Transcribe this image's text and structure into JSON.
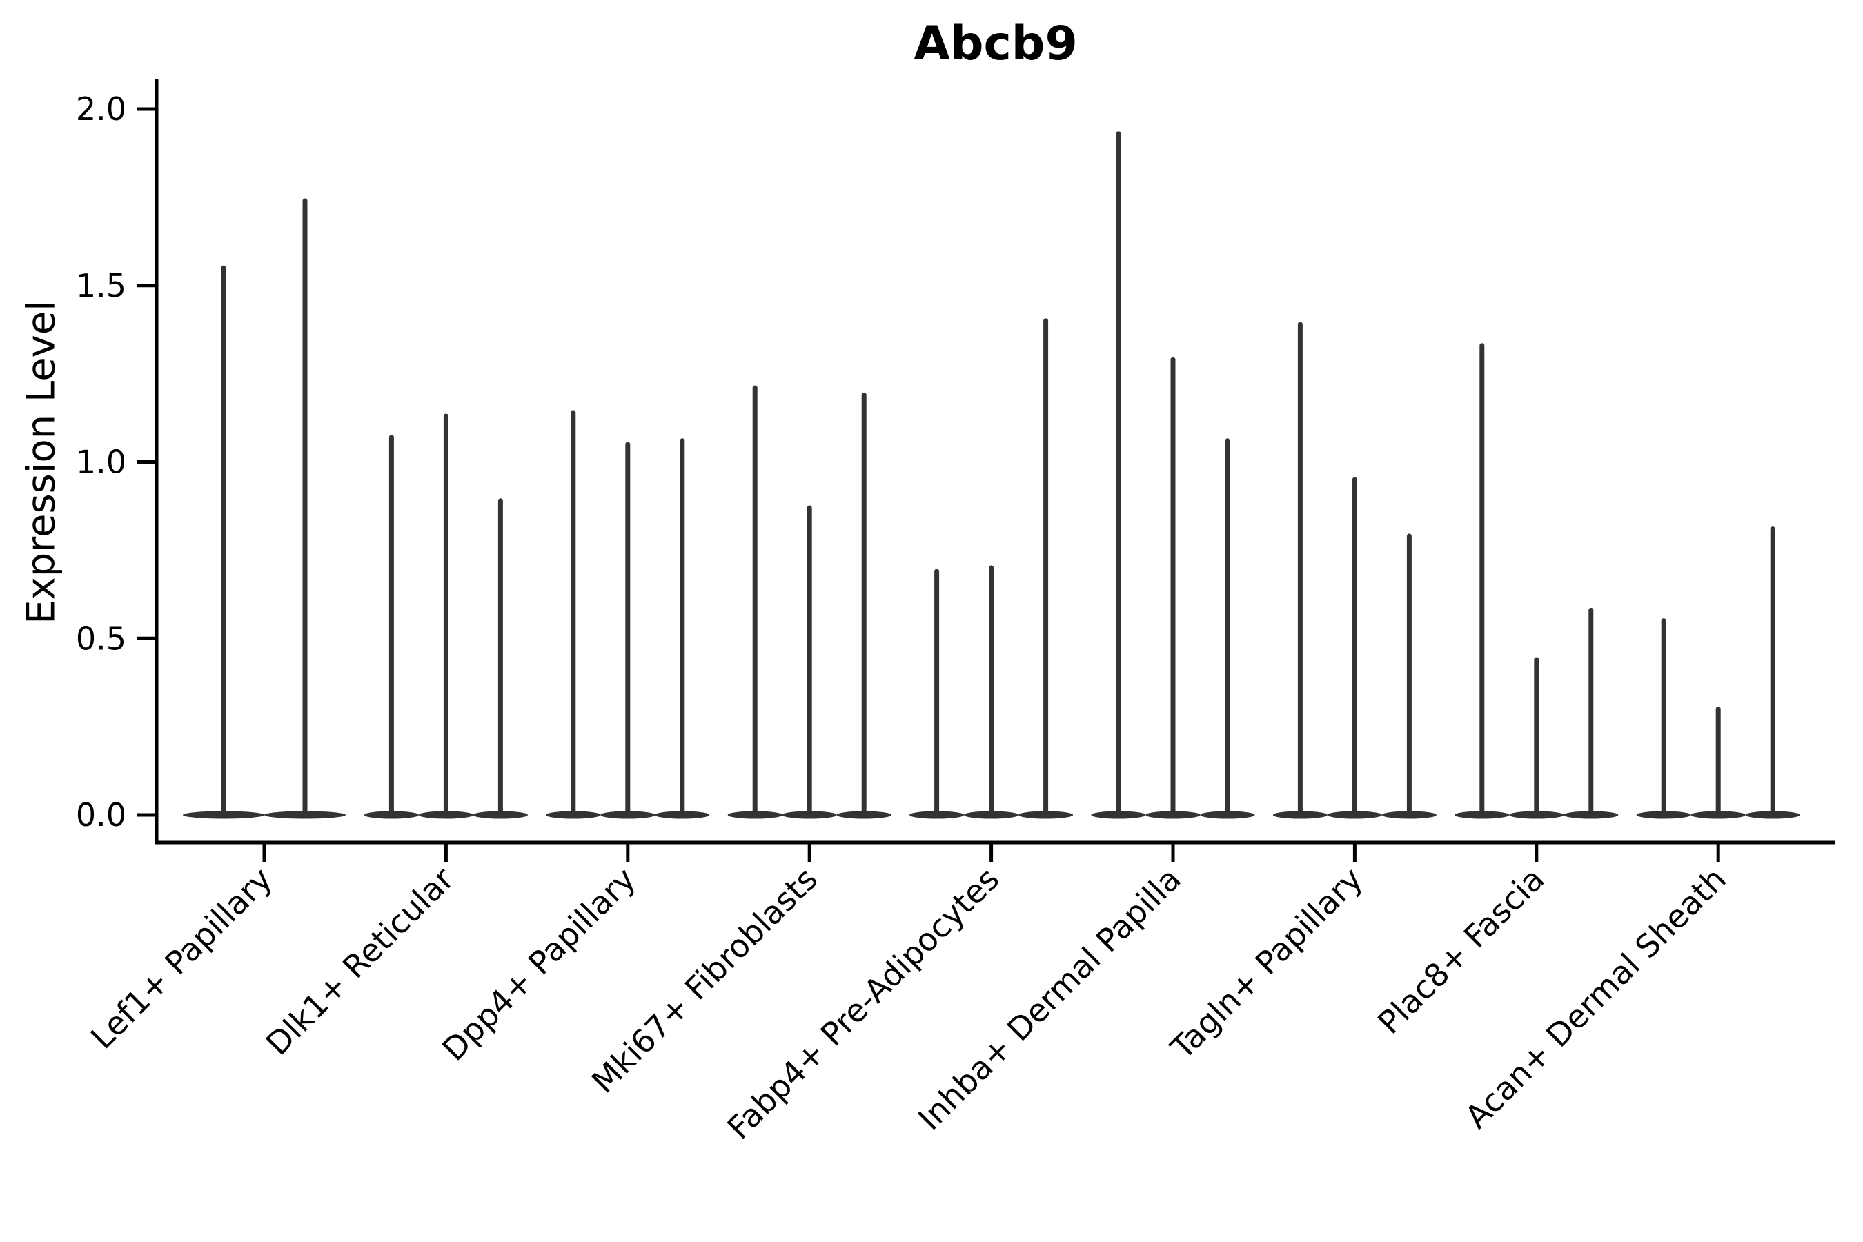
{
  "chart_data": {
    "type": "violin",
    "title": "Abcb9",
    "ylabel": "Expression Level",
    "xlabel": "",
    "ylim": [
      0,
      2.0
    ],
    "yticks": [
      "0.0",
      "0.5",
      "1.0",
      "1.5",
      "2.0"
    ],
    "grid": false,
    "legend": "none",
    "categories": [
      "Lef1+ Papillary",
      "Dlk1+ Reticular",
      "Dpp4+ Papillary",
      "Mki67+ Fibroblasts",
      "Fabp4+ Pre-Adipocytes",
      "Inhba+ Dermal Papilla",
      "Tagln+ Papillary",
      "Plac8+ Fascia",
      "Acan+ Dermal Sheath"
    ],
    "groups": [
      {
        "label": "Lef1+ Papillary",
        "violin_maxima": [
          1.55,
          1.74
        ]
      },
      {
        "label": "Dlk1+ Reticular",
        "violin_maxima": [
          1.07,
          1.13,
          0.89
        ]
      },
      {
        "label": "Dpp4+ Papillary",
        "violin_maxima": [
          1.14,
          1.05,
          1.06
        ]
      },
      {
        "label": "Mki67+ Fibroblasts",
        "violin_maxima": [
          1.21,
          0.87,
          1.19
        ]
      },
      {
        "label": "Fabp4+ Pre-Adipocytes",
        "violin_maxima": [
          0.69,
          0.7,
          1.4
        ]
      },
      {
        "label": "Inhba+ Dermal Papilla",
        "violin_maxima": [
          1.93,
          1.29,
          1.06
        ]
      },
      {
        "label": "Tagln+ Papillary",
        "violin_maxima": [
          1.39,
          0.95,
          0.79
        ]
      },
      {
        "label": "Plac8+ Fascia",
        "violin_maxima": [
          1.33,
          0.44,
          0.58
        ]
      },
      {
        "label": "Acan+ Dermal Sheath",
        "violin_maxima": [
          0.55,
          0.3,
          0.81
        ]
      }
    ],
    "annotation": "Violins are near-zero density bodies at 0 with thin tails up to each maximum",
    "colors": {
      "violin": "#333333",
      "axis": "#000000",
      "background": "#ffffff",
      "text": "#000000"
    }
  }
}
